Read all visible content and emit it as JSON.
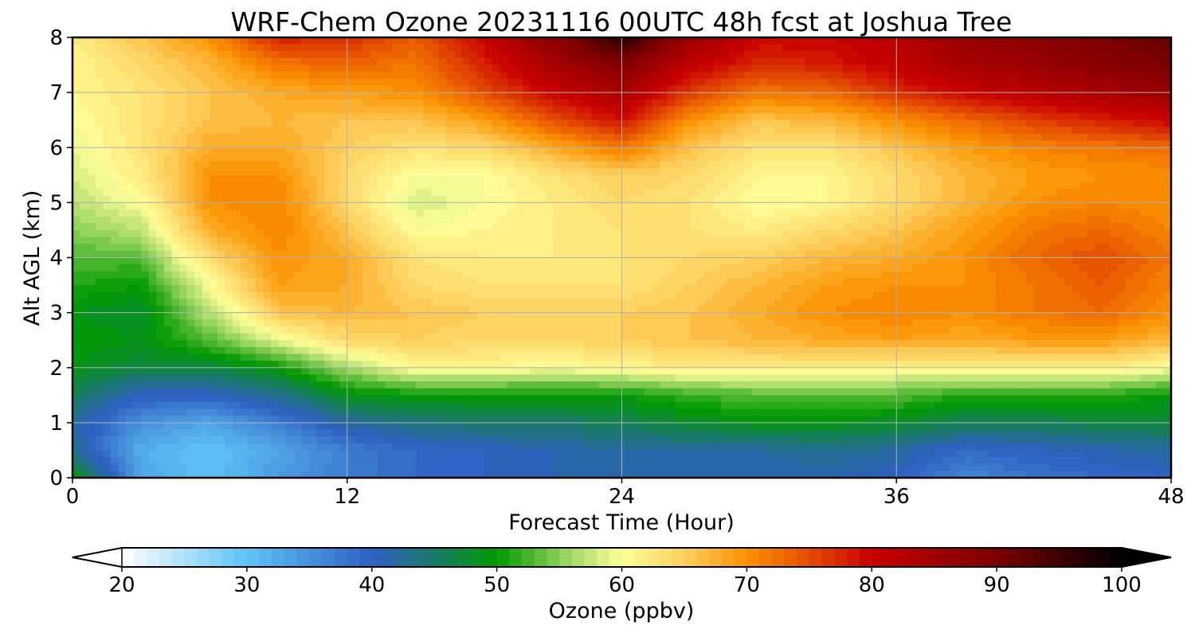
{
  "chart_data": {
    "type": "heatmap",
    "title": "WRF-Chem Ozone  20231116 00UTC 48h fcst at Joshua Tree",
    "xlabel": "Forecast Time (Hour)",
    "ylabel": "Alt AGL (km)",
    "xlim": [
      0,
      48
    ],
    "ylim": [
      0,
      8
    ],
    "x_ticks": [
      "0",
      "12",
      "24",
      "36",
      "48"
    ],
    "y_ticks": [
      "0",
      "1",
      "2",
      "3",
      "4",
      "5",
      "6",
      "7",
      "8"
    ],
    "grid": true,
    "x": [
      0,
      3,
      6,
      9,
      12,
      15,
      18,
      21,
      24,
      27,
      30,
      33,
      36,
      39,
      42,
      45,
      48
    ],
    "y": [
      0,
      0.5,
      1,
      1.5,
      2,
      2.5,
      3,
      3.5,
      4,
      4.5,
      5,
      5.5,
      6,
      6.5,
      7,
      7.5,
      8
    ],
    "z": [
      [
        50,
        33,
        30,
        34,
        37,
        39,
        40,
        41,
        41,
        41,
        41,
        41,
        40,
        36,
        38,
        39,
        40
      ],
      [
        43,
        32,
        30,
        33,
        37,
        39,
        40,
        41,
        42,
        42,
        42,
        43,
        42,
        39,
        40,
        41,
        42
      ],
      [
        42,
        35,
        33,
        37,
        42,
        44,
        45,
        45,
        46,
        48,
        49,
        49,
        48,
        46,
        46,
        47,
        47
      ],
      [
        46,
        40,
        40,
        43,
        49,
        50,
        50,
        50,
        50,
        52,
        53,
        53,
        53,
        51,
        51,
        51,
        50
      ],
      [
        49,
        47,
        47,
        50,
        56,
        61,
        61,
        60,
        61,
        62,
        62,
        62,
        61,
        62,
        62,
        62,
        60
      ],
      [
        50,
        49,
        53,
        59,
        64,
        65,
        64,
        64,
        65,
        66,
        67,
        68,
        69,
        68,
        69,
        69,
        67
      ],
      [
        49,
        48,
        57,
        66,
        67,
        66,
        65,
        65,
        65,
        66,
        68,
        70,
        71,
        70,
        72,
        73,
        70
      ],
      [
        51,
        50,
        60,
        69,
        68,
        64,
        63,
        63,
        63,
        65,
        67,
        69,
        70,
        70,
        72,
        74,
        71
      ],
      [
        53,
        53,
        64,
        70,
        68,
        63,
        62,
        62,
        63,
        64,
        65,
        67,
        68,
        70,
        73,
        75,
        72
      ],
      [
        55,
        57,
        68,
        71,
        66,
        60,
        61,
        62,
        63,
        63,
        62,
        64,
        66,
        69,
        72,
        73,
        71
      ],
      [
        57,
        60,
        70,
        71,
        64,
        58,
        60,
        62,
        64,
        63,
        60,
        61,
        64,
        67,
        70,
        71,
        70
      ],
      [
        58,
        62,
        70,
        70,
        64,
        60,
        60,
        63,
        65,
        64,
        61,
        61,
        64,
        67,
        69,
        70,
        70
      ],
      [
        59,
        63,
        68,
        68,
        65,
        63,
        64,
        68,
        72,
        66,
        63,
        63,
        66,
        69,
        71,
        72,
        73
      ],
      [
        60,
        63,
        66,
        67,
        66,
        66,
        69,
        75,
        79,
        70,
        66,
        67,
        70,
        73,
        76,
        78,
        80
      ],
      [
        61,
        63,
        66,
        68,
        69,
        70,
        75,
        80,
        84,
        76,
        72,
        73,
        77,
        80,
        82,
        84,
        86
      ],
      [
        61,
        64,
        67,
        72,
        73,
        72,
        78,
        84,
        89,
        81,
        77,
        78,
        81,
        84,
        86,
        88,
        90
      ],
      [
        62,
        66,
        70,
        78,
        77,
        74,
        80,
        88,
        97,
        86,
        80,
        80,
        82,
        86,
        88,
        90,
        92
      ]
    ],
    "colorbar": {
      "label": "Ozone  (ppbv)",
      "range": [
        20,
        100
      ],
      "ticks": [
        "20",
        "30",
        "40",
        "50",
        "60",
        "70",
        "80",
        "90",
        "100"
      ],
      "extend": "both",
      "levels": 80
    },
    "colormap_stops": [
      {
        "value": 20,
        "color": "#ffffff"
      },
      {
        "value": 30,
        "color": "#5ec3f4"
      },
      {
        "value": 40,
        "color": "#2f60c2"
      },
      {
        "value": 45,
        "color": "#1a7a6a"
      },
      {
        "value": 50,
        "color": "#009900"
      },
      {
        "value": 56,
        "color": "#a5d96a"
      },
      {
        "value": 60,
        "color": "#ffff99"
      },
      {
        "value": 65,
        "color": "#fdd05e"
      },
      {
        "value": 70,
        "color": "#fb9200"
      },
      {
        "value": 75,
        "color": "#e54d00"
      },
      {
        "value": 80,
        "color": "#c80000"
      },
      {
        "value": 90,
        "color": "#7a0000"
      },
      {
        "value": 100,
        "color": "#000000"
      }
    ]
  }
}
